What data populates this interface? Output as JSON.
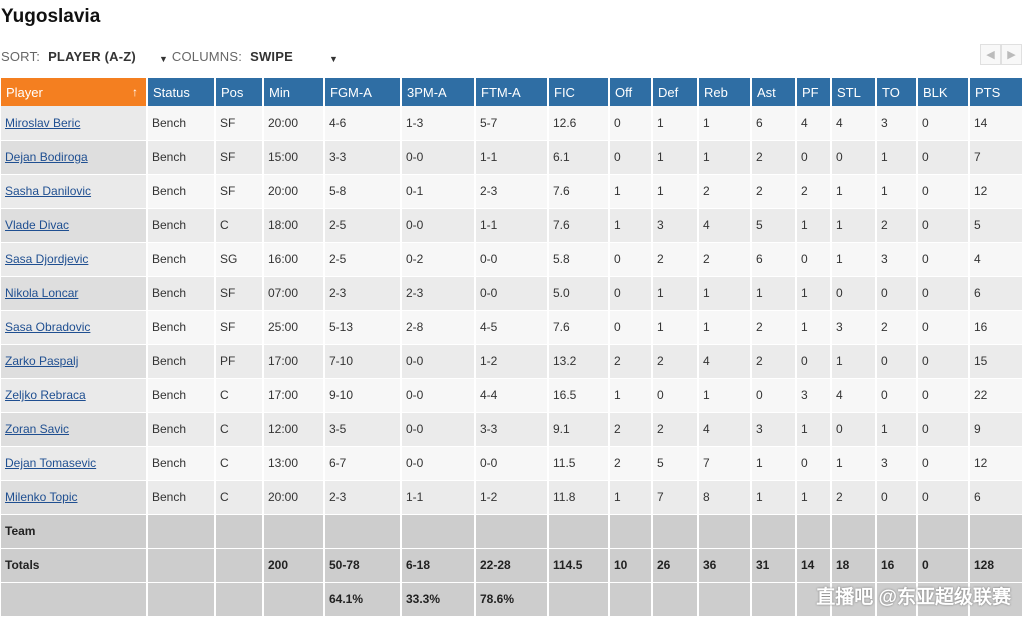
{
  "page": {
    "title": "Yugoslavia"
  },
  "controls": {
    "sort_label": "SORT:",
    "sort_value": "PLAYER (A-Z)",
    "columns_label": "COLUMNS:",
    "columns_value": "SWIPE",
    "caret": "▼",
    "prev": "◀",
    "next": "▶"
  },
  "colors": {
    "header": "#2f6ea4",
    "sorted_header": "#f47f20",
    "link": "#1f4f91"
  },
  "table": {
    "columns": [
      "Player",
      "Status",
      "Pos",
      "Min",
      "FGM-A",
      "3PM-A",
      "FTM-A",
      "FIC",
      "Off",
      "Def",
      "Reb",
      "Ast",
      "PF",
      "STL",
      "TO",
      "BLK",
      "PTS"
    ],
    "sort_arrow": "↑",
    "rows": [
      [
        "Miroslav Beric",
        "Bench",
        "SF",
        "20:00",
        "4-6",
        "1-3",
        "5-7",
        "12.6",
        "0",
        "1",
        "1",
        "6",
        "4",
        "4",
        "3",
        "0",
        "14"
      ],
      [
        "Dejan Bodiroga",
        "Bench",
        "SF",
        "15:00",
        "3-3",
        "0-0",
        "1-1",
        "6.1",
        "0",
        "1",
        "1",
        "2",
        "0",
        "0",
        "1",
        "0",
        "7"
      ],
      [
        "Sasha Danilovic",
        "Bench",
        "SF",
        "20:00",
        "5-8",
        "0-1",
        "2-3",
        "7.6",
        "1",
        "1",
        "2",
        "2",
        "2",
        "1",
        "1",
        "0",
        "12"
      ],
      [
        "Vlade Divac",
        "Bench",
        "C",
        "18:00",
        "2-5",
        "0-0",
        "1-1",
        "7.6",
        "1",
        "3",
        "4",
        "5",
        "1",
        "1",
        "2",
        "0",
        "5"
      ],
      [
        "Sasa Djordjevic",
        "Bench",
        "SG",
        "16:00",
        "2-5",
        "0-2",
        "0-0",
        "5.8",
        "0",
        "2",
        "2",
        "6",
        "0",
        "1",
        "3",
        "0",
        "4"
      ],
      [
        "Nikola Loncar",
        "Bench",
        "SF",
        "07:00",
        "2-3",
        "2-3",
        "0-0",
        "5.0",
        "0",
        "1",
        "1",
        "1",
        "1",
        "0",
        "0",
        "0",
        "6"
      ],
      [
        "Sasa Obradovic",
        "Bench",
        "SF",
        "25:00",
        "5-13",
        "2-8",
        "4-5",
        "7.6",
        "0",
        "1",
        "1",
        "2",
        "1",
        "3",
        "2",
        "0",
        "16"
      ],
      [
        "Zarko Paspalj",
        "Bench",
        "PF",
        "17:00",
        "7-10",
        "0-0",
        "1-2",
        "13.2",
        "2",
        "2",
        "4",
        "2",
        "0",
        "1",
        "0",
        "0",
        "15"
      ],
      [
        "Zeljko Rebraca",
        "Bench",
        "C",
        "17:00",
        "9-10",
        "0-0",
        "4-4",
        "16.5",
        "1",
        "0",
        "1",
        "0",
        "3",
        "4",
        "0",
        "0",
        "22"
      ],
      [
        "Zoran Savic",
        "Bench",
        "C",
        "12:00",
        "3-5",
        "0-0",
        "3-3",
        "9.1",
        "2",
        "2",
        "4",
        "3",
        "1",
        "0",
        "1",
        "0",
        "9"
      ],
      [
        "Dejan Tomasevic",
        "Bench",
        "C",
        "13:00",
        "6-7",
        "0-0",
        "0-0",
        "11.5",
        "2",
        "5",
        "7",
        "1",
        "0",
        "1",
        "3",
        "0",
        "12"
      ],
      [
        "Milenko Topic",
        "Bench",
        "C",
        "20:00",
        "2-3",
        "1-1",
        "1-2",
        "11.8",
        "1",
        "7",
        "8",
        "1",
        "1",
        "2",
        "0",
        "0",
        "6"
      ]
    ],
    "team_row": [
      "Team",
      "",
      "",
      "",
      "",
      "",
      "",
      "",
      "",
      "",
      "",
      "",
      "",
      "",
      "",
      "",
      ""
    ],
    "totals_row": [
      "Totals",
      "",
      "",
      "200",
      "50-78",
      "6-18",
      "22-28",
      "114.5",
      "10",
      "26",
      "36",
      "31",
      "14",
      "18",
      "16",
      "0",
      "128"
    ],
    "pct_row": [
      "",
      "",
      "",
      "",
      "64.1%",
      "33.3%",
      "78.6%",
      "",
      "",
      "",
      "",
      "",
      "",
      "",
      "",
      "",
      ""
    ]
  },
  "watermark": "直播吧 @东亚超级联赛"
}
